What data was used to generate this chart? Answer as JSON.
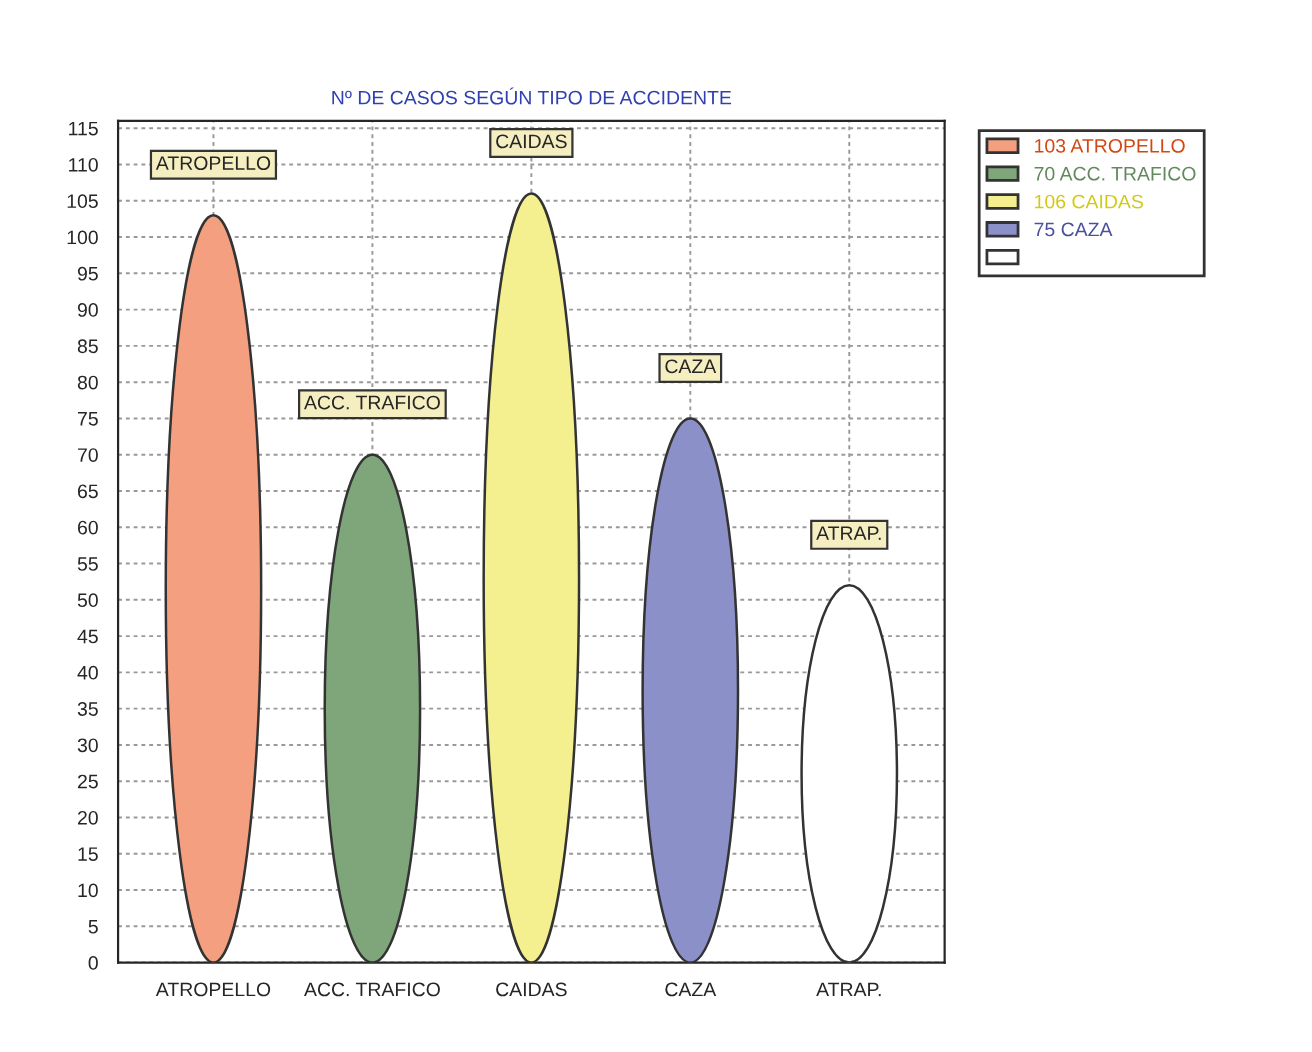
{
  "chart_data": {
    "type": "bar",
    "title": "Nº DE CASOS SEGÚN TIPO DE ACCIDENTE",
    "categories": [
      "ATROPELLO",
      "ACC. TRAFICO",
      "CAIDAS",
      "CAZA",
      "ATRAP."
    ],
    "series": [
      {
        "name": "103 ATROPELLO",
        "color": "#f4a080",
        "values": [
          103,
          null,
          null,
          null,
          null
        ]
      },
      {
        "name": "70 ACC. TRAFICO",
        "color": "#7fa57a",
        "values": [
          null,
          70,
          null,
          null,
          null
        ]
      },
      {
        "name": "106 CAIDAS",
        "color": "#f5f08f",
        "values": [
          null,
          null,
          106,
          null,
          null
        ]
      },
      {
        "name": "75 CAZA",
        "color": "#8c90c8",
        "values": [
          null,
          null,
          null,
          75,
          null
        ]
      },
      {
        "color": "#ffffff",
        "values": [
          null,
          null,
          null,
          null,
          52
        ]
      }
    ],
    "annotations": [
      "ATROPELLO",
      "ACC. TRAFICO",
      "CAIDAS",
      "CAZA",
      "ATRAP."
    ],
    "ylim": [
      0,
      116
    ],
    "yticks": [
      0,
      5,
      10,
      15,
      20,
      25,
      30,
      35,
      40,
      45,
      50,
      55,
      60,
      65,
      70,
      75,
      80,
      85,
      90,
      95,
      100,
      105,
      110,
      115
    ],
    "grid": true,
    "legend": "top right"
  }
}
